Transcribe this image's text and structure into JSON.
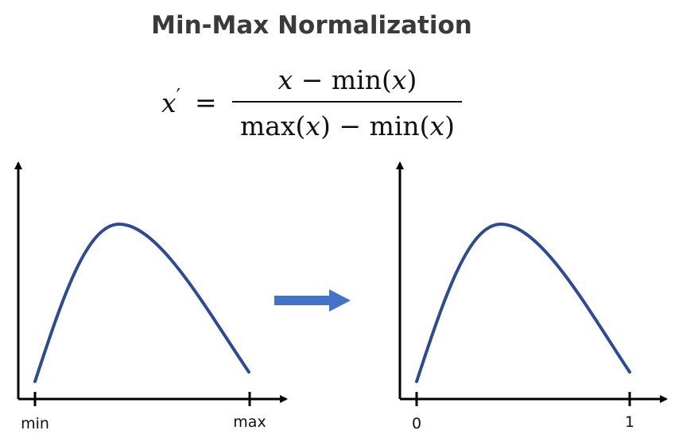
{
  "title": "Min-Max Normalization",
  "formula": {
    "lhs_var": "x",
    "lhs_prime": "′",
    "equals": "=",
    "numerator": {
      "var": "x",
      "minus": "−",
      "func": "min",
      "open": "(",
      "arg": "x",
      "close": ")"
    },
    "denominator": {
      "func1": "max",
      "open1": "(",
      "arg1": "x",
      "close1": ")",
      "minus": "−",
      "func2": "min",
      "open2": "(",
      "arg2": "x",
      "close2": ")"
    }
  },
  "left_plot": {
    "tick_min_label": "min",
    "tick_max_label": "max"
  },
  "right_plot": {
    "tick_min_label": "0",
    "tick_max_label": "1"
  },
  "colors": {
    "curve": "#2f4b8f",
    "arrow": "#4472c4",
    "axis": "#000000",
    "title": "#3a3a3a"
  }
}
